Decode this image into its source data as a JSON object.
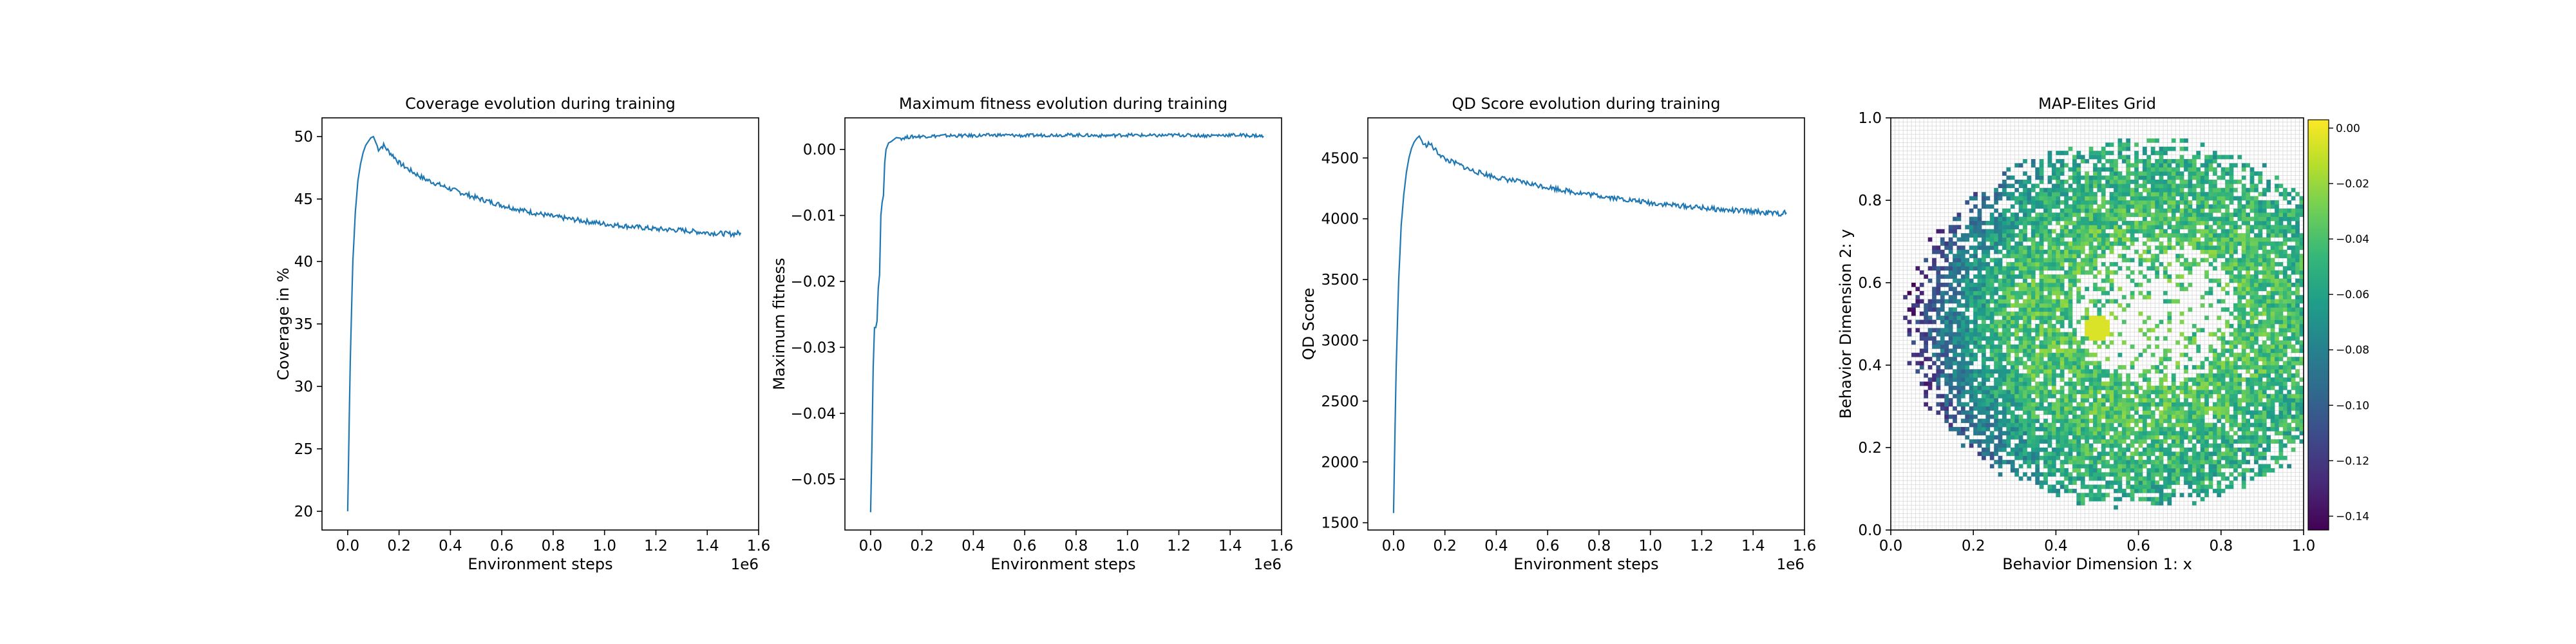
{
  "chart_data": [
    {
      "type": "line",
      "title": "Coverage evolution during training",
      "xlabel": "Environment steps",
      "ylabel": "Coverage in %",
      "x_offset_text": "1e6",
      "xlim": [
        -0.1,
        1.6
      ],
      "ylim": [
        18.5,
        51.5
      ],
      "x_ticks": [
        0.0,
        0.2,
        0.4,
        0.6,
        0.8,
        1.0,
        1.2,
        1.4,
        1.6
      ],
      "x_tick_labels": [
        "0.0",
        "0.2",
        "0.4",
        "0.6",
        "0.8",
        "1.0",
        "1.2",
        "1.4",
        "1.6"
      ],
      "y_ticks": [
        20,
        25,
        30,
        35,
        40,
        45,
        50
      ],
      "y_tick_labels": [
        "20",
        "25",
        "30",
        "35",
        "40",
        "45",
        "50"
      ],
      "color": "#1f77b4",
      "series": [
        {
          "x": [
            0.0,
            0.01,
            0.02,
            0.03,
            0.04,
            0.05,
            0.06,
            0.07,
            0.08,
            0.09,
            0.1,
            0.11,
            0.12,
            0.14,
            0.16,
            0.18,
            0.2,
            0.25,
            0.3,
            0.35,
            0.4,
            0.5,
            0.6,
            0.7,
            0.8,
            0.9,
            1.0,
            1.1,
            1.2,
            1.3,
            1.4,
            1.5,
            1.53
          ],
          "y": [
            20.0,
            32.0,
            40.0,
            44.0,
            46.5,
            47.8,
            48.7,
            49.3,
            49.6,
            49.9,
            50.0,
            49.5,
            49.0,
            49.3,
            48.8,
            48.4,
            47.9,
            47.2,
            46.6,
            46.2,
            45.8,
            45.1,
            44.5,
            44.0,
            43.6,
            43.3,
            43.0,
            42.8,
            42.6,
            42.5,
            42.3,
            42.2,
            42.3
          ]
        }
      ]
    },
    {
      "type": "line",
      "title": "Maximum fitness evolution during training",
      "xlabel": "Environment steps",
      "ylabel": "Maximum fitness",
      "x_offset_text": "1e6",
      "xlim": [
        -0.1,
        1.6
      ],
      "ylim": [
        -0.0577,
        0.0048
      ],
      "x_ticks": [
        0.0,
        0.2,
        0.4,
        0.6,
        0.8,
        1.0,
        1.2,
        1.4,
        1.6
      ],
      "x_tick_labels": [
        "0.0",
        "0.2",
        "0.4",
        "0.6",
        "0.8",
        "1.0",
        "1.2",
        "1.4",
        "1.6"
      ],
      "y_ticks": [
        -0.05,
        -0.04,
        -0.03,
        -0.02,
        -0.01,
        0.0
      ],
      "y_tick_labels": [
        "−0.05",
        "−0.04",
        "−0.03",
        "−0.02",
        "−0.01",
        "0.00"
      ],
      "color": "#1f77b4",
      "series": [
        {
          "x": [
            0.0,
            0.005,
            0.01,
            0.015,
            0.02,
            0.025,
            0.03,
            0.035,
            0.04,
            0.045,
            0.05,
            0.055,
            0.06,
            0.065,
            0.07,
            0.08,
            0.09,
            0.1,
            0.12,
            0.15,
            0.2,
            0.3,
            0.4,
            0.5,
            0.6,
            0.7,
            0.8,
            0.9,
            1.0,
            1.1,
            1.2,
            1.3,
            1.4,
            1.5,
            1.53
          ],
          "y": [
            -0.055,
            -0.045,
            -0.033,
            -0.027,
            -0.027,
            -0.026,
            -0.021,
            -0.019,
            -0.01,
            -0.008,
            -0.007,
            -0.002,
            0.0,
            0.0005,
            0.001,
            0.0012,
            0.0015,
            0.0018,
            0.0017,
            0.0019,
            0.002,
            0.0021,
            0.0021,
            0.0022,
            0.0021,
            0.0022,
            0.0022,
            0.0021,
            0.0022,
            0.0021,
            0.0022,
            0.0021,
            0.0022,
            0.0021,
            0.002
          ]
        }
      ]
    },
    {
      "type": "line",
      "title": "QD Score evolution during training",
      "xlabel": "Environment steps",
      "ylabel": "QD Score",
      "x_offset_text": "1e6",
      "xlim": [
        -0.1,
        1.6
      ],
      "ylim": [
        1440,
        4830
      ],
      "x_ticks": [
        0.0,
        0.2,
        0.4,
        0.6,
        0.8,
        1.0,
        1.2,
        1.4,
        1.6
      ],
      "x_tick_labels": [
        "0.0",
        "0.2",
        "0.4",
        "0.6",
        "0.8",
        "1.0",
        "1.2",
        "1.4",
        "1.6"
      ],
      "y_ticks": [
        1500,
        2000,
        2500,
        3000,
        3500,
        4000,
        4500
      ],
      "y_tick_labels": [
        "1500",
        "2000",
        "2500",
        "3000",
        "3500",
        "4000",
        "4500"
      ],
      "color": "#1f77b4",
      "series": [
        {
          "x": [
            0.0,
            0.01,
            0.02,
            0.03,
            0.04,
            0.05,
            0.06,
            0.07,
            0.08,
            0.09,
            0.1,
            0.11,
            0.12,
            0.14,
            0.16,
            0.18,
            0.2,
            0.25,
            0.3,
            0.35,
            0.4,
            0.5,
            0.6,
            0.7,
            0.8,
            0.9,
            1.0,
            1.1,
            1.2,
            1.3,
            1.4,
            1.5,
            1.53
          ],
          "y": [
            1580,
            2750,
            3500,
            3950,
            4200,
            4380,
            4500,
            4580,
            4630,
            4660,
            4680,
            4640,
            4600,
            4620,
            4570,
            4530,
            4490,
            4450,
            4400,
            4370,
            4340,
            4300,
            4260,
            4220,
            4190,
            4160,
            4130,
            4110,
            4090,
            4070,
            4060,
            4040,
            4050
          ]
        }
      ]
    },
    {
      "type": "heatmap",
      "title": "MAP-Elites Grid",
      "xlabel": "Behavior Dimension 1: x",
      "ylabel": "Behavior Dimension 2: y",
      "xlim": [
        0.0,
        1.0
      ],
      "ylim": [
        0.0,
        1.0
      ],
      "x_ticks": [
        0.0,
        0.2,
        0.4,
        0.6,
        0.8,
        1.0
      ],
      "x_tick_labels": [
        "0.0",
        "0.2",
        "0.4",
        "0.6",
        "0.8",
        "1.0"
      ],
      "y_ticks": [
        0.0,
        0.2,
        0.4,
        0.6,
        0.8,
        1.0
      ],
      "y_tick_labels": [
        "0.0",
        "0.2",
        "0.4",
        "0.6",
        "0.8",
        "1.0"
      ],
      "grid": true,
      "grid_cells": 100,
      "colormap": "viridis",
      "colorbar_range": [
        -0.145,
        0.003
      ],
      "colorbar_ticks": [
        0.0,
        -0.02,
        -0.04,
        -0.06,
        -0.08,
        -0.1,
        -0.12,
        -0.14
      ],
      "colorbar_tick_labels": [
        "0.00",
        "−0.02",
        "−0.04",
        "−0.06",
        "−0.08",
        "−0.10",
        "−0.12",
        "−0.14"
      ],
      "filled_region": {
        "shape": "ring",
        "center": [
          0.6,
          0.5
        ],
        "outer_radius_x": 0.54,
        "outer_radius_y": 0.43,
        "hole_center": [
          0.64,
          0.53
        ],
        "hole_radius_x": 0.2,
        "hole_radius_y": 0.18,
        "hotspot": [
          0.5,
          0.49
        ]
      }
    }
  ]
}
